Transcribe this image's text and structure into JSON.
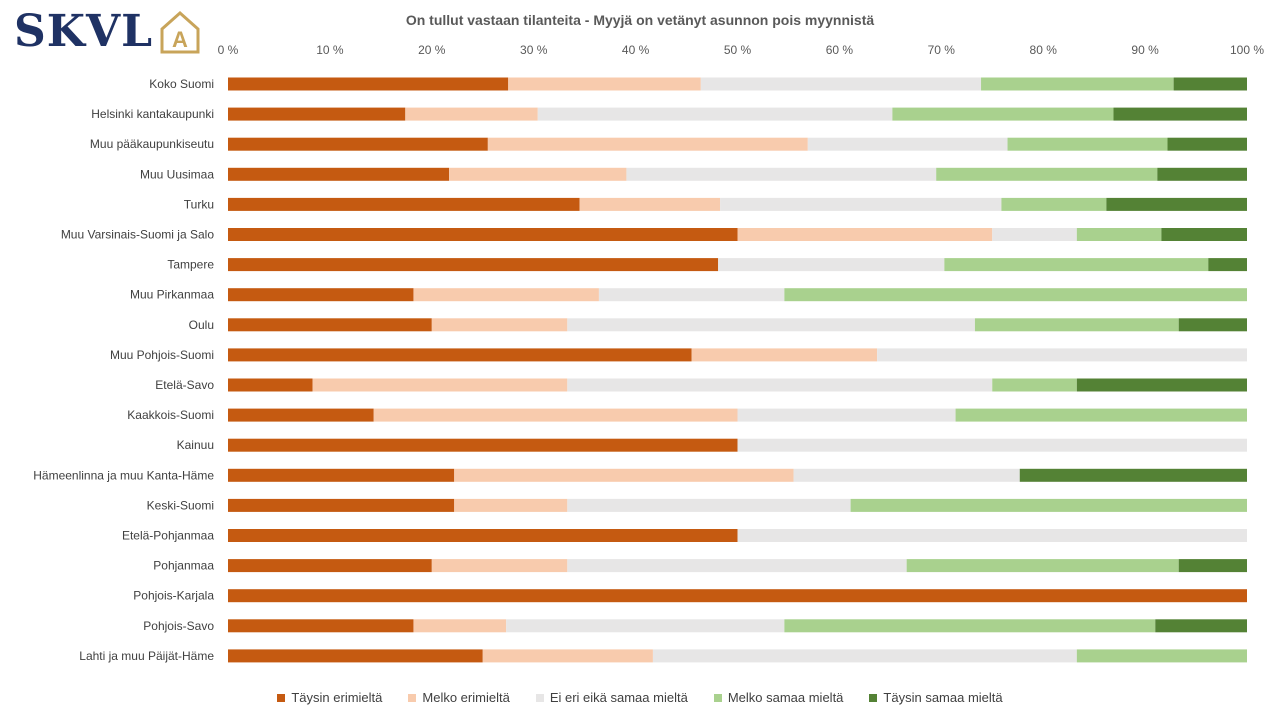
{
  "brand": {
    "logo_text": "SKVL",
    "logo_mark": "A",
    "color": "#1f3264",
    "accent": "#c8a45a"
  },
  "chart_data": {
    "type": "bar",
    "orientation": "horizontal",
    "stacked": true,
    "title": "On tullut vastaan tilanteita - Myyjä on vetänyt asunnon pois myynnistä",
    "xlim": [
      0,
      100
    ],
    "x_ticks": [
      "0 %",
      "10 %",
      "20 %",
      "30 %",
      "40 %",
      "50 %",
      "60 %",
      "70 %",
      "80 %",
      "90 %",
      "100 %"
    ],
    "grid": false,
    "legend_position": "bottom",
    "categories": [
      "Koko Suomi",
      "Helsinki kantakaupunki",
      "Muu pääkaupunkiseutu",
      "Muu Uusimaa",
      "Turku",
      "Muu Varsinais-Suomi ja Salo",
      "Tampere",
      "Muu Pirkanmaa",
      "Oulu",
      "Muu Pohjois-Suomi",
      "Etelä-Savo",
      "Kaakkois-Suomi",
      "Kainuu",
      "Hämeenlinna ja muu Kanta-Häme",
      "Keski-Suomi",
      "Etelä-Pohjanmaa",
      "Pohjanmaa",
      "Pohjois-Karjala",
      "Pohjois-Savo",
      "Lahti ja muu Päijät-Häme"
    ],
    "series": [
      {
        "name": "Täysin erimieltä",
        "color": "#c55a11",
        "values": [
          27.5,
          17.4,
          25.5,
          21.7,
          34.5,
          50,
          48.1,
          18.2,
          20,
          45.5,
          8.3,
          14.3,
          50,
          22.2,
          22.2,
          50,
          20,
          100,
          18.2,
          25
        ]
      },
      {
        "name": "Melko erimieltä",
        "color": "#f8cbad",
        "values": [
          18.9,
          13,
          31.4,
          17.4,
          13.8,
          25,
          0,
          18.2,
          13.3,
          18.2,
          25,
          35.7,
          0,
          33.3,
          11.1,
          0,
          13.3,
          0,
          9.1,
          16.7
        ]
      },
      {
        "name": "Ei eri eikä samaa mieltä",
        "color": "#e7e6e6",
        "values": [
          27.5,
          34.8,
          19.6,
          30.4,
          27.6,
          8.3,
          22.2,
          18.2,
          40,
          36.3,
          41.7,
          21.4,
          50,
          22.2,
          27.8,
          50,
          33.3,
          0,
          27.3,
          41.6
        ]
      },
      {
        "name": "Melko samaa mieltä",
        "color": "#a9d18e",
        "values": [
          18.9,
          21.7,
          15.7,
          21.7,
          10.3,
          8.3,
          25.9,
          45.4,
          20,
          0,
          8.3,
          28.6,
          0,
          0,
          38.9,
          0,
          26.7,
          0,
          36.4,
          16.7
        ]
      },
      {
        "name": "Täysin samaa mieltä",
        "color": "#548235",
        "values": [
          7.2,
          13.1,
          7.8,
          8.8,
          13.8,
          8.4,
          3.8,
          0,
          6.7,
          0,
          16.7,
          0,
          0,
          22.3,
          0,
          0,
          6.7,
          0,
          9,
          0
        ]
      }
    ]
  }
}
